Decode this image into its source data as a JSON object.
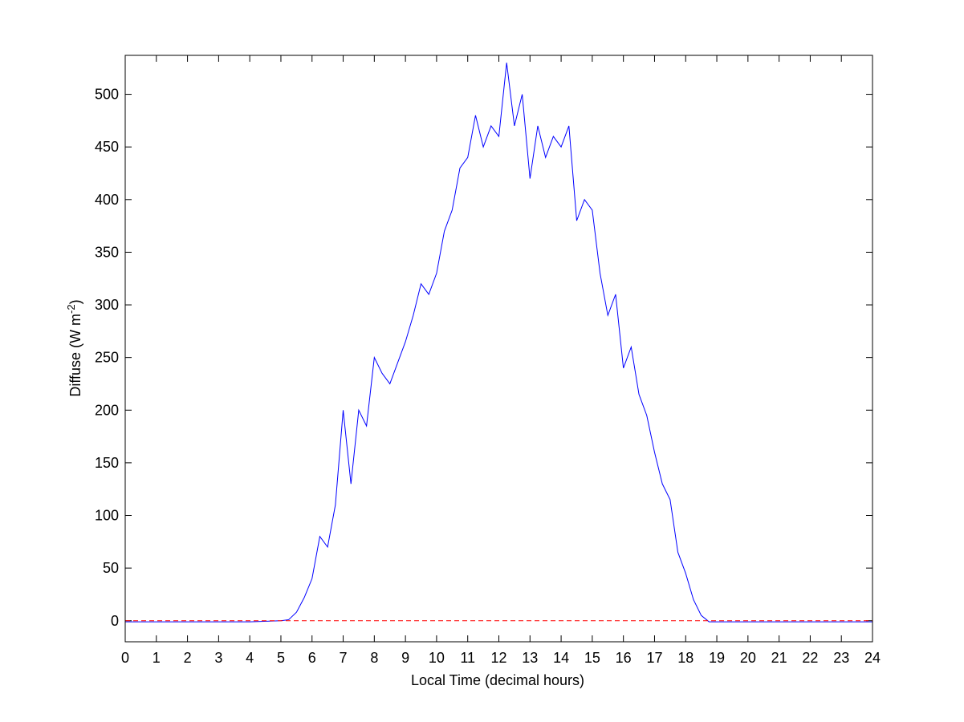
{
  "chart_data": {
    "type": "line",
    "xlabel": "Local Time (decimal hours)",
    "ylabel": [
      "Diffuse (W m",
      "-2",
      ")"
    ],
    "x": [
      0,
      1,
      2,
      3,
      4,
      5,
      5.25,
      5.5,
      5.75,
      6,
      6.25,
      6.5,
      6.75,
      7,
      7.25,
      7.5,
      7.75,
      8,
      8.25,
      8.5,
      8.75,
      9,
      9.25,
      9.5,
      9.75,
      10,
      10.25,
      10.5,
      10.75,
      11,
      11.25,
      11.5,
      11.75,
      12,
      12.25,
      12.5,
      12.75,
      13,
      13.25,
      13.5,
      13.75,
      14,
      14.25,
      14.5,
      14.75,
      15,
      15.25,
      15.5,
      15.75,
      16,
      16.25,
      16.5,
      16.75,
      17,
      17.25,
      17.5,
      17.75,
      18,
      18.25,
      18.5,
      18.75,
      19,
      20,
      21,
      22,
      23,
      24
    ],
    "series": [
      {
        "color": "#0000ff",
        "values": [
          -1,
          -1,
          -1,
          -1,
          -1,
          0,
          1,
          8,
          22,
          40,
          80,
          70,
          110,
          200,
          130,
          200,
          185,
          250,
          235,
          225,
          245,
          265,
          290,
          320,
          310,
          330,
          370,
          390,
          430,
          440,
          480,
          450,
          470,
          460,
          530,
          470,
          500,
          420,
          470,
          440,
          460,
          450,
          470,
          380,
          400,
          390,
          330,
          290,
          310,
          240,
          260,
          215,
          195,
          160,
          130,
          115,
          65,
          45,
          20,
          5,
          -1,
          -1,
          -1,
          -1,
          -1,
          -1,
          -1
        ]
      }
    ],
    "hline": {
      "value": 0,
      "color": "#ff0000",
      "style": "dashed"
    },
    "xlim": [
      0,
      24
    ],
    "xticks": [
      0,
      1,
      2,
      3,
      4,
      5,
      6,
      7,
      8,
      9,
      10,
      11,
      12,
      13,
      14,
      15,
      16,
      17,
      18,
      19,
      20,
      21,
      22,
      23,
      24
    ],
    "ylim": [
      -20,
      537
    ],
    "yticks": [
      0,
      50,
      100,
      150,
      200,
      250,
      300,
      350,
      400,
      450,
      500
    ],
    "grid": false
  }
}
